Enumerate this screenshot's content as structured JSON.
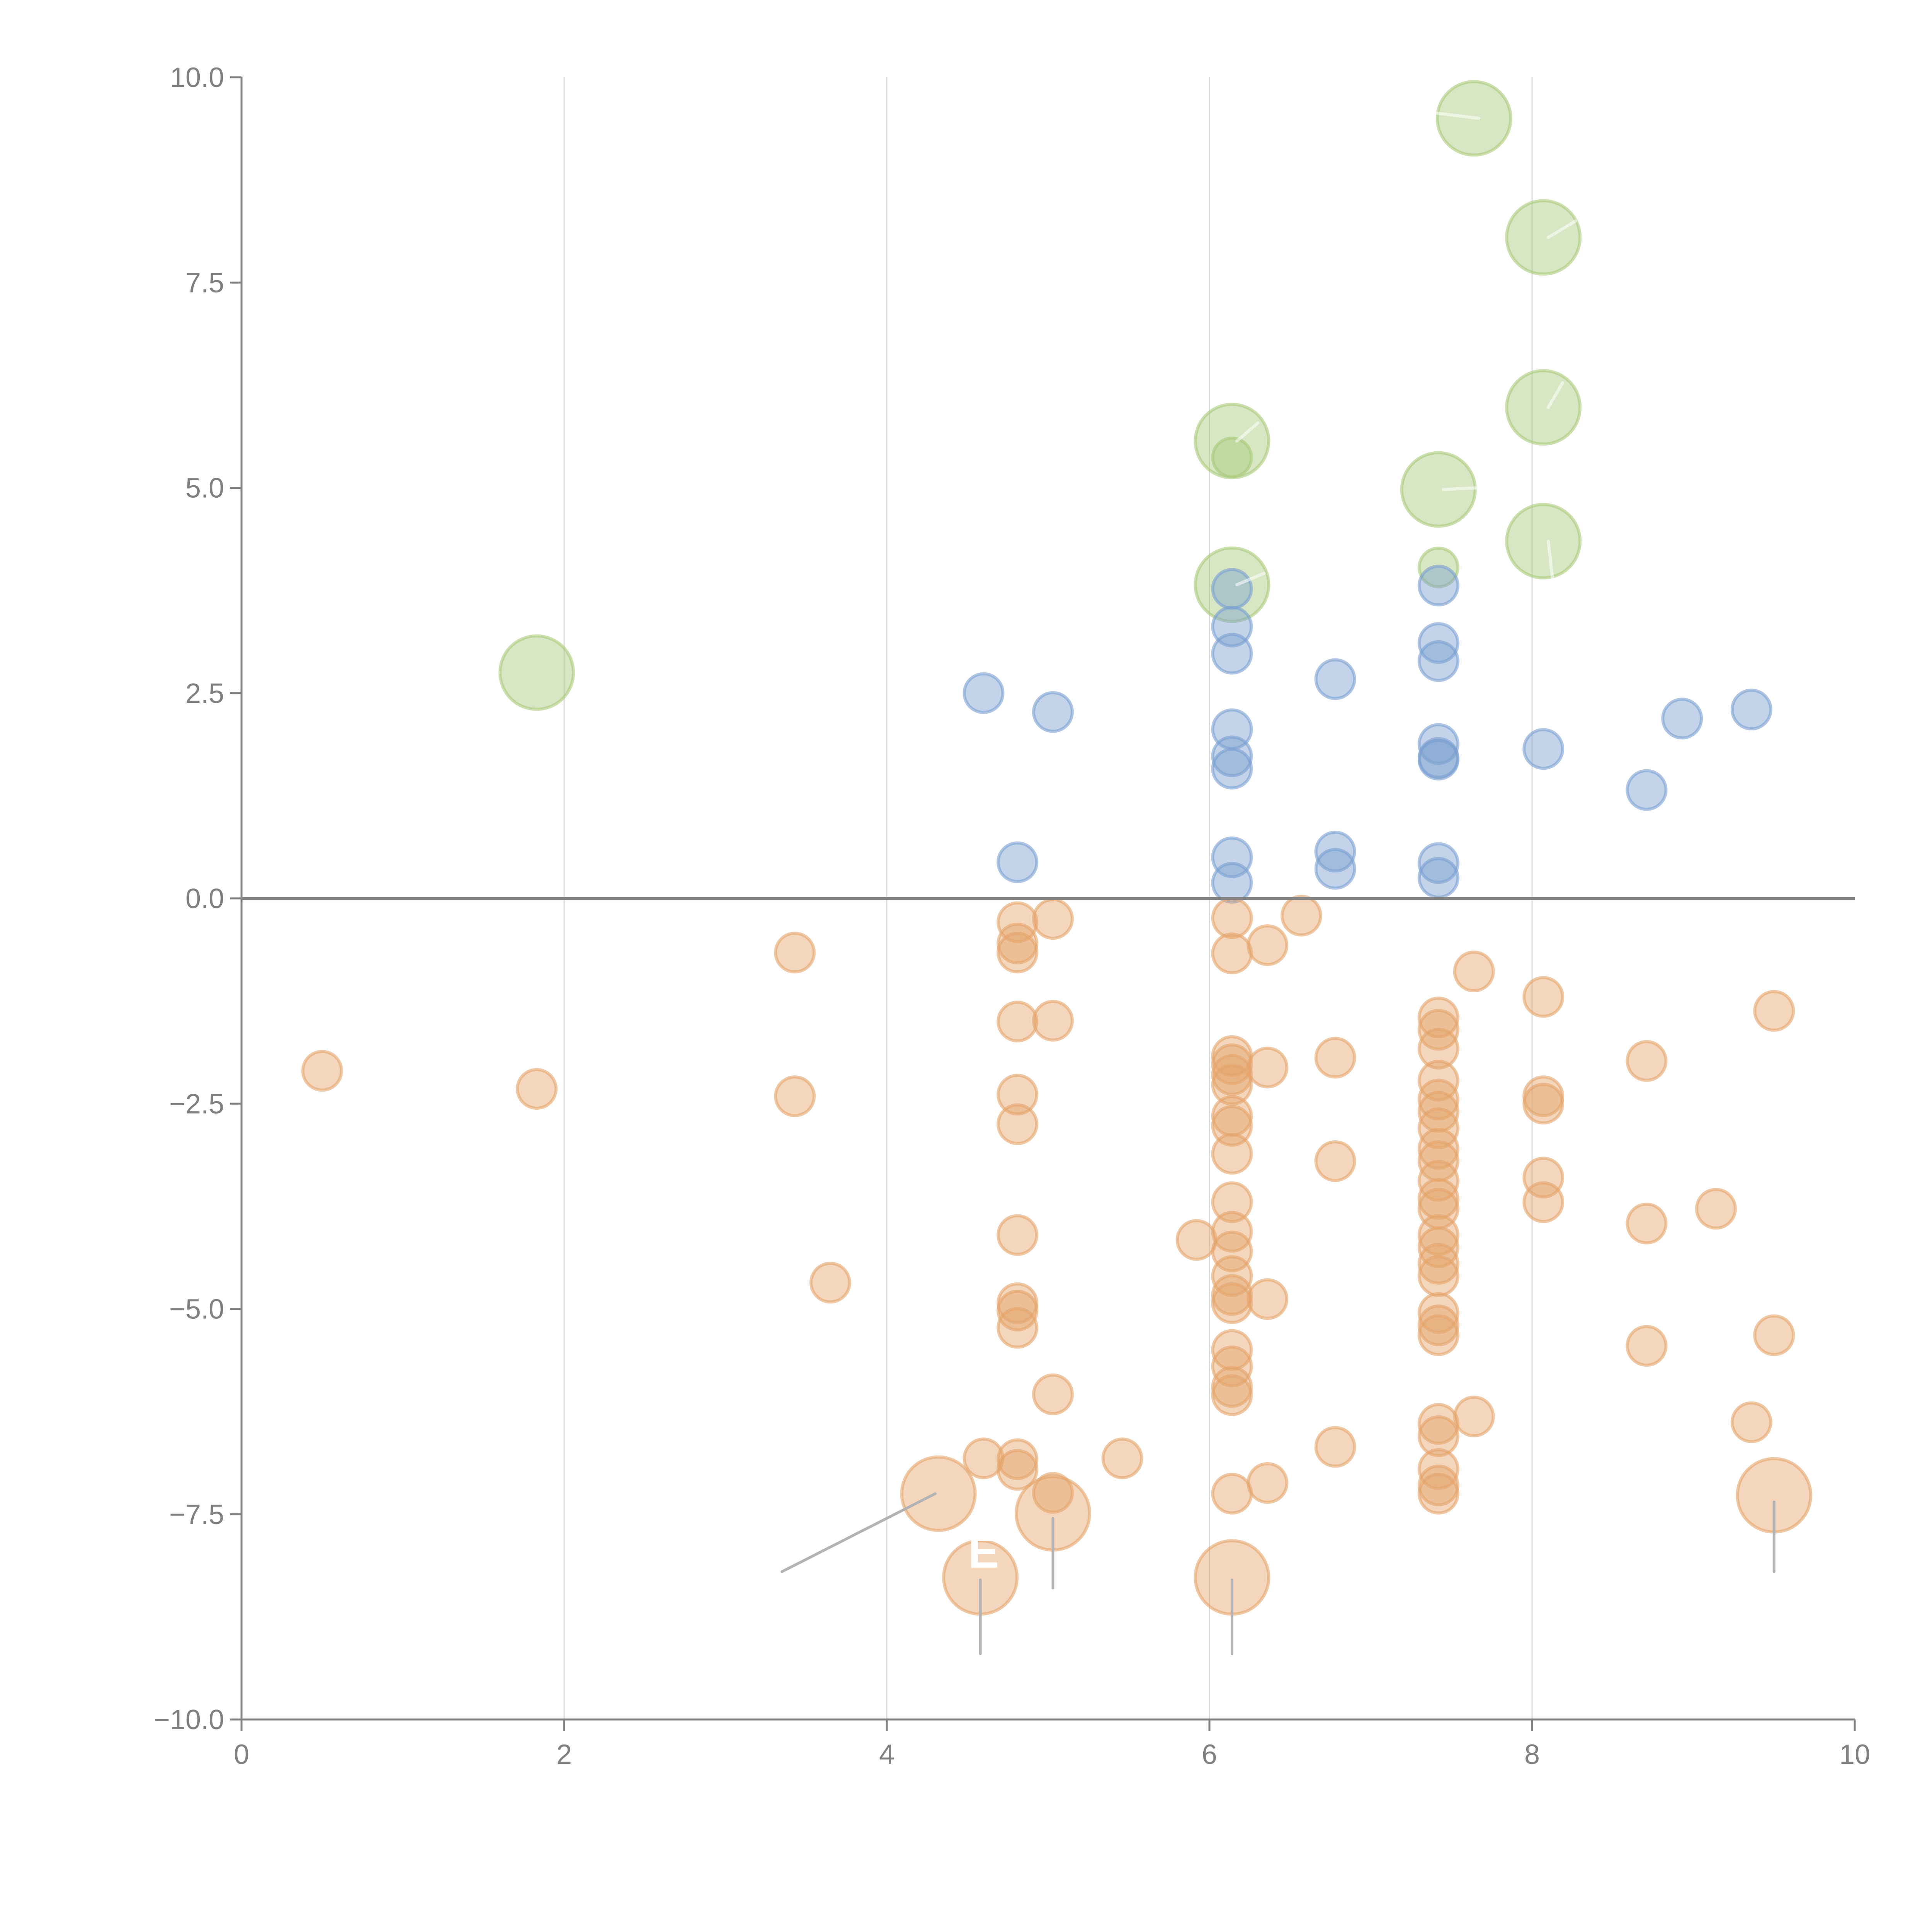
{
  "chart_data": {
    "type": "scatter",
    "title": "",
    "xlabel": "",
    "ylabel": "",
    "xlim": [
      0,
      10
    ],
    "ylim": [
      -10,
      10
    ],
    "x_ticks": [
      "0",
      "2",
      "4",
      "6",
      "8",
      "10"
    ],
    "x_tick_values": [
      0,
      2,
      4,
      6,
      8,
      10
    ],
    "y_ticks": [
      "10.0",
      "7.5",
      "5.0",
      "2.5",
      "0.0",
      "−2.5",
      "−5.0",
      "−7.5",
      "−10.0"
    ],
    "y_tick_values": [
      10,
      7.5,
      5,
      2.5,
      0,
      -2.5,
      -5,
      -7.5,
      -10
    ],
    "grid": "vertical",
    "zero_line": true,
    "colors": {
      "green": "#a9c97a",
      "blue": "#7a9fd0",
      "orange": "#e4a46a",
      "axis": "#808080",
      "grid": "#d9d9d9",
      "leader": "#b3b3b3"
    },
    "series": [
      {
        "name": "green",
        "color": "#a9c97a",
        "points": [
          {
            "x": 1.83,
            "y": 2.75,
            "size": "large"
          },
          {
            "x": 6.14,
            "y": 5.57,
            "size": "large"
          },
          {
            "x": 6.14,
            "y": 5.37,
            "size": "small"
          },
          {
            "x": 6.14,
            "y": 3.82,
            "size": "large"
          },
          {
            "x": 7.42,
            "y": 4.98,
            "size": "large"
          },
          {
            "x": 7.42,
            "y": 4.03,
            "size": "small"
          },
          {
            "x": 7.64,
            "y": 9.5,
            "size": "large"
          },
          {
            "x": 8.07,
            "y": 8.05,
            "size": "large"
          },
          {
            "x": 8.07,
            "y": 5.98,
            "size": "large"
          },
          {
            "x": 8.07,
            "y": 4.35,
            "size": "large"
          }
        ]
      },
      {
        "name": "blue",
        "color": "#7a9fd0",
        "points": [
          {
            "x": 4.6,
            "y": 2.5
          },
          {
            "x": 4.81,
            "y": 0.44
          },
          {
            "x": 5.03,
            "y": 2.27
          },
          {
            "x": 6.14,
            "y": 3.77
          },
          {
            "x": 6.14,
            "y": 3.31
          },
          {
            "x": 6.14,
            "y": 2.98
          },
          {
            "x": 6.14,
            "y": 2.06
          },
          {
            "x": 6.14,
            "y": 1.73
          },
          {
            "x": 6.14,
            "y": 1.58
          },
          {
            "x": 6.14,
            "y": 0.5
          },
          {
            "x": 6.14,
            "y": 0.19
          },
          {
            "x": 6.78,
            "y": 2.67
          },
          {
            "x": 6.78,
            "y": 0.57
          },
          {
            "x": 6.78,
            "y": 0.36
          },
          {
            "x": 7.42,
            "y": 3.81
          },
          {
            "x": 7.42,
            "y": 3.11
          },
          {
            "x": 7.42,
            "y": 2.89
          },
          {
            "x": 7.42,
            "y": 1.88
          },
          {
            "x": 7.42,
            "y": 1.71
          },
          {
            "x": 7.42,
            "y": 1.69
          },
          {
            "x": 7.42,
            "y": 0.43
          },
          {
            "x": 7.42,
            "y": 0.25
          },
          {
            "x": 8.07,
            "y": 1.82
          },
          {
            "x": 8.71,
            "y": 1.32
          },
          {
            "x": 8.93,
            "y": 2.19
          },
          {
            "x": 9.36,
            "y": 2.3
          }
        ]
      },
      {
        "name": "orange",
        "color": "#e4a46a",
        "points": [
          {
            "x": 0.5,
            "y": -2.1
          },
          {
            "x": 1.83,
            "y": -2.32
          },
          {
            "x": 3.43,
            "y": -0.66
          },
          {
            "x": 3.43,
            "y": -2.41
          },
          {
            "x": 3.65,
            "y": -4.68
          },
          {
            "x": 4.6,
            "y": -6.82
          },
          {
            "x": 4.81,
            "y": -0.29
          },
          {
            "x": 4.81,
            "y": -0.55
          },
          {
            "x": 4.81,
            "y": -0.66
          },
          {
            "x": 4.81,
            "y": -1.5
          },
          {
            "x": 4.81,
            "y": -2.39
          },
          {
            "x": 4.81,
            "y": -2.75
          },
          {
            "x": 4.81,
            "y": -4.1
          },
          {
            "x": 4.81,
            "y": -4.93
          },
          {
            "x": 4.81,
            "y": -5.02
          },
          {
            "x": 4.81,
            "y": -5.23
          },
          {
            "x": 4.81,
            "y": -6.83
          },
          {
            "x": 4.81,
            "y": -6.96
          },
          {
            "x": 5.03,
            "y": -0.25
          },
          {
            "x": 5.03,
            "y": -1.49
          },
          {
            "x": 5.03,
            "y": -6.04
          },
          {
            "x": 5.03,
            "y": -7.24
          },
          {
            "x": 5.46,
            "y": -6.82
          },
          {
            "x": 5.92,
            "y": -4.16
          },
          {
            "x": 6.14,
            "y": -0.24
          },
          {
            "x": 6.14,
            "y": -0.67
          },
          {
            "x": 6.14,
            "y": -1.92
          },
          {
            "x": 6.14,
            "y": -2.02
          },
          {
            "x": 6.14,
            "y": -2.15
          },
          {
            "x": 6.14,
            "y": -2.27
          },
          {
            "x": 6.14,
            "y": -2.65
          },
          {
            "x": 6.14,
            "y": -2.77
          },
          {
            "x": 6.14,
            "y": -3.11
          },
          {
            "x": 6.14,
            "y": -3.7
          },
          {
            "x": 6.14,
            "y": -4.06
          },
          {
            "x": 6.14,
            "y": -4.3
          },
          {
            "x": 6.14,
            "y": -4.6
          },
          {
            "x": 6.14,
            "y": -4.83
          },
          {
            "x": 6.14,
            "y": -4.93
          },
          {
            "x": 6.14,
            "y": -5.5
          },
          {
            "x": 6.14,
            "y": -5.7
          },
          {
            "x": 6.14,
            "y": -5.95
          },
          {
            "x": 6.14,
            "y": -6.05
          },
          {
            "x": 6.14,
            "y": -7.25
          },
          {
            "x": 6.36,
            "y": -0.57
          },
          {
            "x": 6.36,
            "y": -2.06
          },
          {
            "x": 6.36,
            "y": -4.88
          },
          {
            "x": 6.36,
            "y": -7.12
          },
          {
            "x": 6.57,
            "y": -0.21
          },
          {
            "x": 6.78,
            "y": -1.94
          },
          {
            "x": 6.78,
            "y": -3.2
          },
          {
            "x": 6.78,
            "y": -6.68
          },
          {
            "x": 7.42,
            "y": -1.45
          },
          {
            "x": 7.42,
            "y": -1.6
          },
          {
            "x": 7.42,
            "y": -1.83
          },
          {
            "x": 7.42,
            "y": -2.22
          },
          {
            "x": 7.42,
            "y": -2.45
          },
          {
            "x": 7.42,
            "y": -2.6
          },
          {
            "x": 7.42,
            "y": -2.8
          },
          {
            "x": 7.42,
            "y": -3.05
          },
          {
            "x": 7.42,
            "y": -3.2
          },
          {
            "x": 7.42,
            "y": -3.44
          },
          {
            "x": 7.42,
            "y": -3.66
          },
          {
            "x": 7.42,
            "y": -3.78
          },
          {
            "x": 7.42,
            "y": -4.1
          },
          {
            "x": 7.42,
            "y": -4.25
          },
          {
            "x": 7.42,
            "y": -4.45
          },
          {
            "x": 7.42,
            "y": -4.6
          },
          {
            "x": 7.42,
            "y": -5.05
          },
          {
            "x": 7.42,
            "y": -5.2
          },
          {
            "x": 7.42,
            "y": -5.32
          },
          {
            "x": 7.42,
            "y": -6.4
          },
          {
            "x": 7.42,
            "y": -6.55
          },
          {
            "x": 7.42,
            "y": -6.95
          },
          {
            "x": 7.42,
            "y": -7.15
          },
          {
            "x": 7.42,
            "y": -7.25
          },
          {
            "x": 7.64,
            "y": -0.89
          },
          {
            "x": 7.64,
            "y": -6.31
          },
          {
            "x": 8.07,
            "y": -1.2
          },
          {
            "x": 8.07,
            "y": -2.41
          },
          {
            "x": 8.07,
            "y": -2.5
          },
          {
            "x": 8.07,
            "y": -3.4
          },
          {
            "x": 8.07,
            "y": -3.7
          },
          {
            "x": 8.71,
            "y": -1.98
          },
          {
            "x": 8.71,
            "y": -3.96
          },
          {
            "x": 8.71,
            "y": -5.45
          },
          {
            "x": 9.14,
            "y": -3.78
          },
          {
            "x": 9.36,
            "y": -6.38
          },
          {
            "x": 9.5,
            "y": -1.37
          },
          {
            "x": 9.5,
            "y": -5.32
          }
        ]
      },
      {
        "name": "orange-large",
        "color": "#e4a46a",
        "points": [
          {
            "x": 4.32,
            "y": -7.25,
            "size": "large"
          },
          {
            "x": 4.58,
            "y": -8.27,
            "size": "large"
          },
          {
            "x": 5.03,
            "y": -7.49,
            "size": "large"
          },
          {
            "x": 6.14,
            "y": -8.27,
            "size": "large"
          },
          {
            "x": 9.5,
            "y": -7.27,
            "size": "large"
          }
        ]
      }
    ],
    "annotations": [
      {
        "text": "E",
        "x": 4.6,
        "y": -8.15
      }
    ]
  }
}
